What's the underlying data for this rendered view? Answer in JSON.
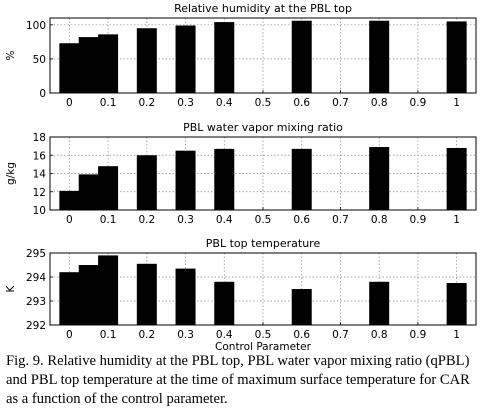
{
  "chart_data": [
    {
      "type": "bar",
      "title": "Relative humidity at the PBL top",
      "xlabel": "",
      "ylabel": "%",
      "x": [
        0,
        0.05,
        0.1,
        0.2,
        0.3,
        0.4,
        0.6,
        0.8,
        1
      ],
      "values": [
        73,
        82,
        86,
        95,
        99,
        104,
        106,
        106,
        105
      ],
      "xlim": [
        -0.05,
        1.05
      ],
      "ylim": [
        0,
        110
      ],
      "xticks": [
        "0",
        "0.1",
        "0.2",
        "0.3",
        "0.4",
        "0.5",
        "0.6",
        "0.7",
        "0.8",
        "0.9",
        "1"
      ],
      "yticks": [
        "0",
        "50",
        "100"
      ],
      "ytick_values": [
        0,
        50,
        100
      ],
      "grid": true
    },
    {
      "type": "bar",
      "title": "PBL water vapor mixing ratio",
      "xlabel": "",
      "ylabel": "g/kg",
      "x": [
        0,
        0.05,
        0.1,
        0.2,
        0.3,
        0.4,
        0.6,
        0.8,
        1
      ],
      "values": [
        12.1,
        13.9,
        14.8,
        16.0,
        16.5,
        16.7,
        16.7,
        16.9,
        16.8
      ],
      "xlim": [
        -0.05,
        1.05
      ],
      "ylim": [
        10,
        18
      ],
      "xticks": [
        "0",
        "0.1",
        "0.2",
        "0.3",
        "0.4",
        "0.5",
        "0.6",
        "0.7",
        "0.8",
        "0.9",
        "1"
      ],
      "yticks": [
        "10",
        "12",
        "14",
        "16",
        "18"
      ],
      "ytick_values": [
        10,
        12,
        14,
        16,
        18
      ],
      "grid": true
    },
    {
      "type": "bar",
      "title": "PBL top temperature",
      "xlabel": "Control Parameter",
      "ylabel": "K",
      "x": [
        0,
        0.05,
        0.1,
        0.2,
        0.3,
        0.4,
        0.6,
        0.8,
        1
      ],
      "values": [
        294.2,
        294.5,
        294.9,
        294.55,
        294.35,
        293.8,
        293.5,
        293.8,
        293.75
      ],
      "xlim": [
        -0.05,
        1.05
      ],
      "ylim": [
        292,
        295
      ],
      "xticks": [
        "0",
        "0.1",
        "0.2",
        "0.3",
        "0.4",
        "0.5",
        "0.6",
        "0.7",
        "0.8",
        "0.9",
        "1"
      ],
      "yticks": [
        "292",
        "293",
        "294",
        "295"
      ],
      "ytick_values": [
        292,
        293,
        294,
        295
      ],
      "grid": true
    }
  ],
  "caption": "Fig. 9. Relative humidity at the PBL top, PBL water vapor mixing ratio (qPBL) and PBL top temperature at the time of maximum surface temperature for CAR as a function of the control parameter."
}
